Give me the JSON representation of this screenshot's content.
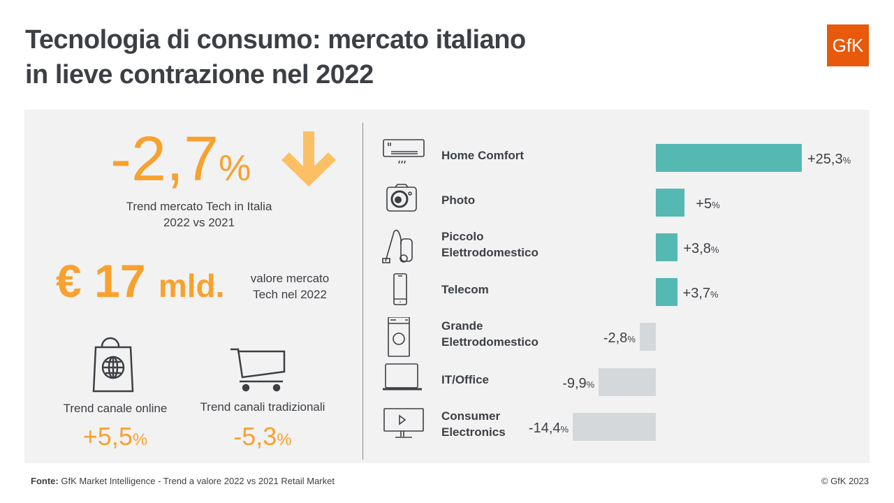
{
  "title_line1": "Tecnologia di consumo: mercato italiano",
  "title_line2": "in lieve contrazione nel 2022",
  "logo_text": "GfK",
  "colors": {
    "orange": "#f9a12e",
    "positive": "#56b8b2",
    "negative": "#d5d8db",
    "logo": "#e8590c"
  },
  "kpi": {
    "trend_value": "-2,7",
    "trend_unit": "%",
    "trend_icon": "arrow-down-icon",
    "trend_label_1": "Trend mercato Tech in Italia",
    "trend_label_2": "2022 vs 2021",
    "market_value": "€ 17",
    "market_unit": "mld.",
    "market_label_1": "valore mercato",
    "market_label_2": "Tech nel 2022",
    "online_label": "Trend canale online",
    "online_value": "+5,5",
    "online_unit": "%",
    "trad_label": "Trend canali tradizionali",
    "trad_value": "-5,3",
    "trad_unit": "%"
  },
  "chart_data": {
    "type": "bar",
    "orientation": "horizontal",
    "categories": [
      "Home Comfort",
      "Photo",
      "Piccolo Elettrodomestico",
      "Telecom",
      "Grande Elettrodomestico",
      "IT/Office",
      "Consumer Electronics"
    ],
    "category_lines": [
      [
        "Home Comfort"
      ],
      [
        "Photo"
      ],
      [
        "Piccolo",
        "Elettrodomestico"
      ],
      [
        "Telecom"
      ],
      [
        "Grande",
        "Elettrodomestico"
      ],
      [
        "IT/Office"
      ],
      [
        "Consumer",
        "Electronics"
      ]
    ],
    "icons": [
      "air-conditioner-icon",
      "camera-icon",
      "vacuum-cleaner-icon",
      "smartphone-icon",
      "washing-machine-icon",
      "laptop-icon",
      "tv-icon"
    ],
    "values": [
      25.3,
      5,
      3.8,
      3.7,
      -2.8,
      -9.9,
      -14.4
    ],
    "labels": [
      "+25,3",
      "+5",
      "+3,8",
      "+3,7",
      "-2,8",
      "-9,9",
      "-14,4"
    ],
    "unit": "%"
  },
  "footer": {
    "source_label": "Fonte:",
    "source_text": "GfK Market Intelligence  - Trend a valore 2022 vs 2021 Retail Market",
    "copyright": "© GfK 2023"
  }
}
